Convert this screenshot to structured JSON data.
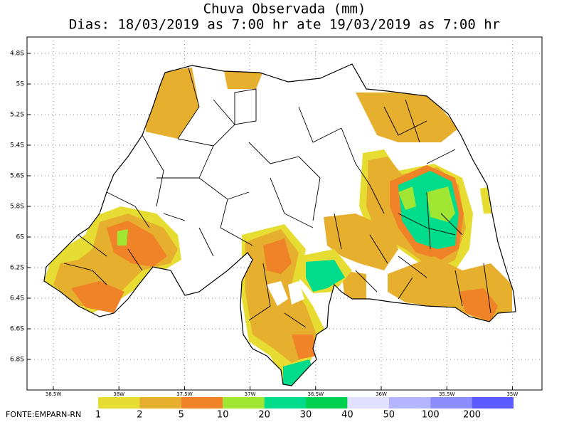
{
  "header": {
    "title": "Chuva Observada (mm)",
    "subtitle": "Dias: 18/03/2019 as 7:00 hr ate 19/03/2019 as 7:00 hr"
  },
  "lat_ticks": [
    "4.8S",
    "5S",
    "5.2S",
    "5.4S",
    "5.6S",
    "5.8S",
    "6S",
    "6.2S",
    "6.4S",
    "6.6S",
    "6.8S"
  ],
  "lon_ticks": [
    "38.5W",
    "38W",
    "37.5W",
    "37W",
    "36.5W",
    "36W",
    "35.5W",
    "35W"
  ],
  "colorbar": [
    {
      "label": "1",
      "color": "#e6dc32"
    },
    {
      "label": "2",
      "color": "#e6af2d"
    },
    {
      "label": "5",
      "color": "#f08228"
    },
    {
      "label": "10",
      "color": "#a0e632"
    },
    {
      "label": "20",
      "color": "#00dc8c"
    },
    {
      "label": "30",
      "color": "#00d050"
    },
    {
      "label": "40",
      "color": "#e1e1ff"
    },
    {
      "label": "50",
      "color": "#b4b4ff"
    },
    {
      "label": "100",
      "color": "#8c8cff"
    },
    {
      "label": "200",
      "color": "#5a5aff"
    }
  ],
  "source": "FONTE:EMPARN-RN"
}
